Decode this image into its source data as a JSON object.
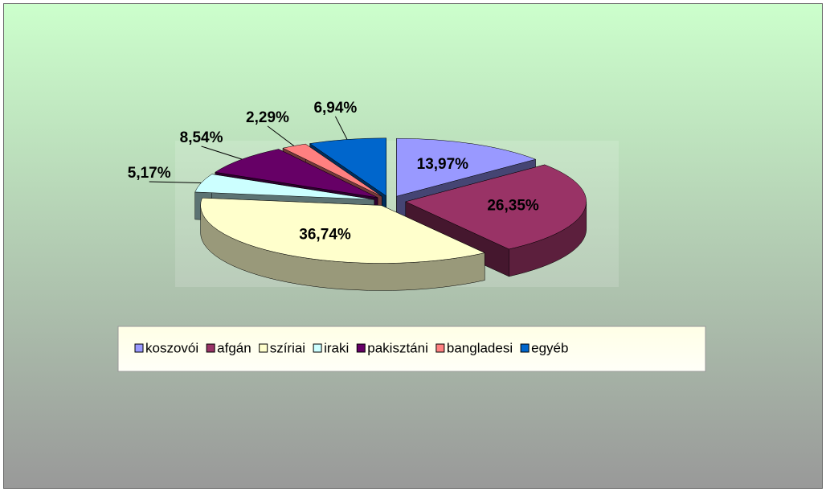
{
  "chart_data": {
    "type": "pie",
    "categories": [
      "koszovói",
      "afgán",
      "szíriai",
      "iraki",
      "pakisztáni",
      "bangladesi",
      "egyéb"
    ],
    "values": [
      13.97,
      26.35,
      36.74,
      5.17,
      8.54,
      2.29,
      6.94
    ],
    "value_labels": [
      "13,97%",
      "26,35%",
      "36,74%",
      "5,17%",
      "8,54%",
      "2,29%",
      "6,94%"
    ],
    "colors": [
      "#9999ff",
      "#993366",
      "#ffffcc",
      "#ccffff",
      "#660066",
      "#ff8080",
      "#0066cc"
    ],
    "legend": "bottom"
  }
}
